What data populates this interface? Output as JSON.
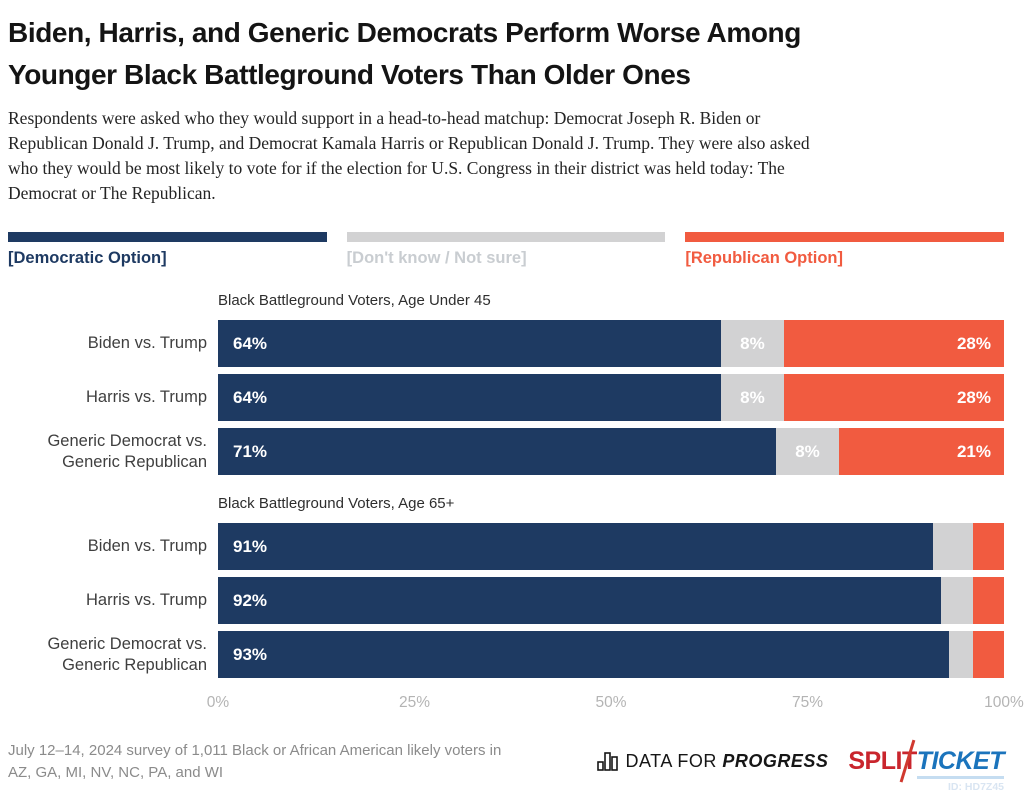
{
  "header": {
    "title_lines": [
      "Biden, Harris, and Generic Democrats Perform Worse Among",
      "Younger Black Battleground Voters Than Older Ones"
    ],
    "subtitle_lines": [
      "Respondents were asked who they would support in a head-to-head matchup: Democrat Joseph R. Biden or",
      "Republican Donald J. Trump, and Democrat Kamala Harris or Republican Donald J. Trump. They were also asked",
      "who they would be most likely to vote for if the election for U.S. Congress in their district was held today: The",
      "Democrat or The Republican."
    ]
  },
  "colors": {
    "democratic": "#1e3a62",
    "unsure": "#d2d2d3",
    "republican": "#f15b40",
    "unsure_label_text": "#c9cdd1",
    "axis_text": "#b4b4b4",
    "splitticket_red": "#c9252d",
    "splitticket_blue": "#1b74bc"
  },
  "legend": {
    "items": [
      {
        "label": "[Democratic Option]",
        "color": "#1e3a62"
      },
      {
        "label": "[Don't know / Not sure]",
        "color": "#d2d2d3"
      },
      {
        "label": "[Republican Option]",
        "color": "#f15b40"
      }
    ]
  },
  "chart_data": {
    "type": "bar",
    "orientation": "horizontal",
    "stacked": true,
    "unit": "percent",
    "x_axis": {
      "range": [
        0,
        100
      ],
      "grid": false,
      "ticks": [
        "0%",
        "25%",
        "50%",
        "75%",
        "100%"
      ]
    },
    "series_names": [
      "Democratic Option",
      "Don't know / Not sure",
      "Republican Option"
    ],
    "legend_position": "top",
    "groups": [
      {
        "title": "Black Battleground Voters, Age Under 45",
        "rows": [
          {
            "label": "Biden vs. Trump",
            "values": {
              "dem": 64,
              "dk": 8,
              "rep": 28
            },
            "dem_label": "64%",
            "dk_label": "8%",
            "rep_label": "28%"
          },
          {
            "label": "Harris vs. Trump",
            "values": {
              "dem": 64,
              "dk": 8,
              "rep": 28
            },
            "dem_label": "64%",
            "dk_label": "8%",
            "rep_label": "28%"
          },
          {
            "label": "Generic Democrat vs. Generic Republican",
            "values": {
              "dem": 71,
              "dk": 8,
              "rep": 21
            },
            "dem_label": "71%",
            "dk_label": "8%",
            "rep_label": "21%"
          }
        ]
      },
      {
        "title": "Black Battleground Voters, Age 65+",
        "rows": [
          {
            "label": "Biden vs. Trump",
            "values": {
              "dem": 91,
              "dk": 5,
              "rep": 4
            },
            "dem_label": "91%",
            "dk_label": "",
            "rep_label": ""
          },
          {
            "label": "Harris vs. Trump",
            "values": {
              "dem": 92,
              "dk": 4,
              "rep": 4
            },
            "dem_label": "92%",
            "dk_label": "",
            "rep_label": ""
          },
          {
            "label": "Generic Democrat vs. Generic Republican",
            "values": {
              "dem": 93,
              "dk": 3,
              "rep": 4
            },
            "dem_label": "93%",
            "dk_label": "",
            "rep_label": ""
          }
        ]
      }
    ]
  },
  "footer": {
    "source_lines": [
      "July 12–14, 2024 survey of 1,011 Black or African American likely voters in",
      "AZ, GA, MI, NV, NC, PA, and WI"
    ],
    "dfp_logo": {
      "prefix": "DATA FOR ",
      "bold": "PROGRESS"
    },
    "splitticket_logo": {
      "split": "SPLIT",
      "ticket": "TICKET"
    },
    "chart_id": "ID: HD7Z45"
  }
}
